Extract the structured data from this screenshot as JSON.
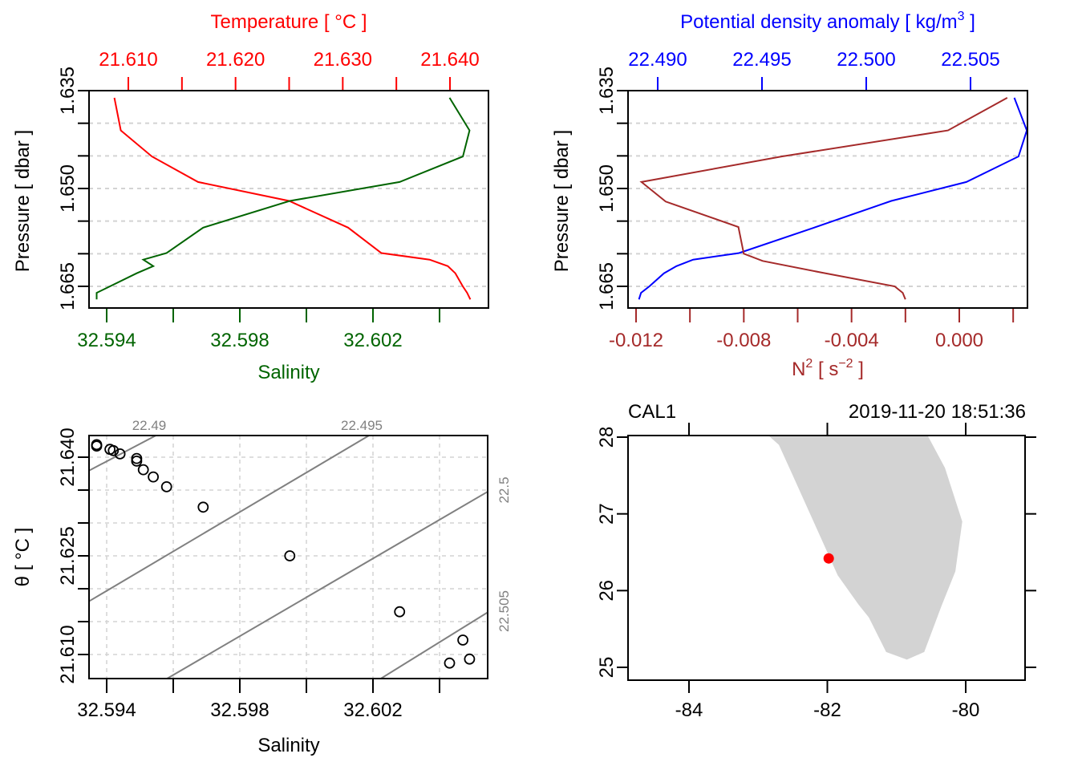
{
  "chart_data": [
    {
      "type": "line",
      "panel": "top-left",
      "title": "",
      "y_axis": {
        "label": "Pressure [ dbar ]",
        "ticks": [
          1.635,
          1.65,
          1.665
        ],
        "tick_labels": [
          "1.635",
          "1.650",
          "1.665"
        ],
        "range": [
          1.635,
          1.6685
        ],
        "reversed": true,
        "minor_ticks": [
          1.64,
          1.645,
          1.655,
          1.66
        ]
      },
      "top_axis": {
        "label": "Temperature [ °C ]",
        "color": "#ff0000",
        "ticks": [
          21.61,
          21.62,
          21.63,
          21.64
        ],
        "tick_labels": [
          "21.610",
          "21.620",
          "21.630",
          "21.640"
        ],
        "minor_ticks": [
          21.615,
          21.625,
          21.635
        ],
        "range": [
          21.6063,
          21.6435
        ]
      },
      "bottom_axis": {
        "label": "Salinity",
        "color": "#006400",
        "ticks": [
          32.594,
          32.598,
          32.602
        ],
        "tick_labels": [
          "32.594",
          "32.598",
          "32.602"
        ],
        "minor_ticks": [
          32.596,
          32.6,
          32.604
        ],
        "range": [
          32.5935,
          32.6055
        ]
      },
      "grid": true,
      "series": [
        {
          "name": "Temperature",
          "color": "#ff0000",
          "pressure": [
            1.6361,
            1.6411,
            1.6451,
            1.649,
            1.6519,
            1.656,
            1.6599,
            1.6609,
            1.6619,
            1.663,
            1.665,
            1.666,
            1.667
          ],
          "values": [
            21.6087,
            21.6093,
            21.6122,
            21.6165,
            21.625,
            21.6305,
            21.6336,
            21.6381,
            21.6398,
            21.6405,
            21.6412,
            21.6416,
            21.6419
          ]
        },
        {
          "name": "Salinity",
          "color": "#006400",
          "pressure": [
            1.6361,
            1.6411,
            1.6451,
            1.649,
            1.6519,
            1.656,
            1.6599,
            1.6609,
            1.6619,
            1.663,
            1.665,
            1.666,
            1.667
          ],
          "values": [
            32.6043,
            32.6049,
            32.6047,
            32.6028,
            32.5995,
            32.5969,
            32.5958,
            32.5951,
            32.5954,
            32.5949,
            32.5941,
            32.5937,
            32.5937
          ]
        }
      ]
    },
    {
      "type": "line",
      "panel": "top-right",
      "y_axis": {
        "label": "Pressure [ dbar ]",
        "ticks": [
          1.635,
          1.65,
          1.665
        ],
        "tick_labels": [
          "1.635",
          "1.650",
          "1.665"
        ],
        "range": [
          1.635,
          1.6685
        ],
        "reversed": true,
        "minor_ticks": [
          1.64,
          1.645,
          1.655,
          1.66
        ]
      },
      "top_axis": {
        "label": "Potential density anomaly [ kg/m",
        "label_sup": "3",
        "label_end": " ]",
        "color": "#0000ff",
        "ticks": [
          22.49,
          22.495,
          22.5,
          22.505
        ],
        "tick_labels": [
          "22.490",
          "22.495",
          "22.500",
          "22.505"
        ],
        "range": [
          22.4886,
          22.5077
        ]
      },
      "bottom_axis": {
        "label_main": "N",
        "label_sup1": "2",
        "label_mid": " [ s",
        "label_sup2": "−2",
        "label_end": " ]",
        "color": "#a52a2a",
        "ticks": [
          -0.012,
          -0.008,
          -0.004,
          0.0
        ],
        "tick_labels": [
          "-0.012",
          "-0.008",
          "-0.004",
          "0.000"
        ],
        "minor_ticks": [
          -0.01,
          -0.006,
          -0.002,
          0.002
        ],
        "range": [
          -0.0125,
          0.0022
        ]
      },
      "grid": true,
      "series": [
        {
          "name": "Potential density anomaly",
          "color": "#0000ff",
          "pressure": [
            1.6361,
            1.6411,
            1.6451,
            1.649,
            1.6519,
            1.656,
            1.6599,
            1.6609,
            1.6619,
            1.663,
            1.665,
            1.666,
            1.667
          ],
          "values": [
            22.5071,
            22.5077,
            22.5073,
            22.5048,
            22.5012,
            22.4975,
            22.4939,
            22.4917,
            22.4909,
            22.4903,
            22.4896,
            22.4892,
            22.4891
          ]
        },
        {
          "name": "N2",
          "color": "#a52a2a",
          "pressure": [
            1.6361,
            1.6411,
            1.6451,
            1.649,
            1.652,
            1.6559,
            1.66,
            1.6611,
            1.6629,
            1.665,
            1.666,
            1.667
          ],
          "values": [
            0.00178,
            -0.00042,
            -0.0066,
            -0.0118,
            -0.0109,
            -0.0082,
            -0.008,
            -0.0073,
            -0.0051,
            -0.0024,
            -0.0021,
            -0.002
          ]
        }
      ]
    },
    {
      "type": "scatter",
      "panel": "bottom-left",
      "x_axis": {
        "label": "Salinity",
        "ticks": [
          32.594,
          32.598,
          32.602
        ],
        "tick_labels": [
          "32.594",
          "32.598",
          "32.602"
        ],
        "minor_ticks": [
          32.596,
          32.6,
          32.604
        ],
        "range": [
          32.5935,
          32.6055
        ]
      },
      "y_axis": {
        "label": "θ [ °C ]",
        "ticks": [
          21.61,
          21.625,
          21.64
        ],
        "tick_labels": [
          "21.610",
          "21.625",
          "21.640"
        ],
        "minor_ticks": [
          21.615,
          21.62,
          21.63,
          21.635
        ],
        "range": [
          21.6064,
          21.6431
        ]
      },
      "grid": true,
      "isopycnals": [
        {
          "value": 22.49,
          "label": "22.49",
          "label_side": "top"
        },
        {
          "value": 22.495,
          "label": "22.495",
          "label_side": "top"
        },
        {
          "value": 22.5,
          "label": "22.5",
          "label_side": "right"
        },
        {
          "value": 22.505,
          "label": "22.505",
          "label_side": "right"
        }
      ],
      "points": {
        "salinity": [
          32.5937,
          32.5937,
          32.5941,
          32.5942,
          32.5944,
          32.5949,
          32.5949,
          32.5951,
          32.5954,
          32.5958,
          32.5969,
          32.5995,
          32.6028,
          32.6047,
          32.6043,
          32.6049
        ],
        "theta": [
          21.6419,
          21.6417,
          21.6412,
          21.641,
          21.6405,
          21.6398,
          21.6394,
          21.6381,
          21.637,
          21.6355,
          21.6324,
          21.625,
          21.6165,
          21.6122,
          21.6087,
          21.6093
        ]
      }
    },
    {
      "type": "map",
      "panel": "bottom-right",
      "station": "CAL1",
      "datetime": "2019-11-20 18:51:36",
      "x_axis": {
        "ticks": [
          -84,
          -82,
          -80
        ],
        "tick_labels": [
          "-84",
          "-82",
          "-80"
        ],
        "range": [
          -84.88,
          -79.14
        ]
      },
      "y_axis": {
        "ticks": [
          25,
          26,
          27,
          28
        ],
        "tick_labels": [
          "25",
          "26",
          "27",
          "28"
        ],
        "range": [
          24.83,
          28.02
        ]
      },
      "land_color": "#d3d3d3",
      "coastline": {
        "lon": [
          -82.85,
          -82.7,
          -82.5,
          -82.1,
          -81.85,
          -81.55,
          -81.4,
          -81.15,
          -80.85,
          -80.6,
          -80.35,
          -80.15,
          -80.05,
          -80.05,
          -80.3,
          -80.55,
          -80.55
        ],
        "lat": [
          28.02,
          27.9,
          27.5,
          26.7,
          26.2,
          25.82,
          25.65,
          25.2,
          25.1,
          25.2,
          25.8,
          26.25,
          26.9,
          26.9,
          27.6,
          28.02,
          28.02
        ]
      },
      "station_point": {
        "lon": -81.98,
        "lat": 26.42,
        "color": "#ff0000"
      }
    }
  ]
}
